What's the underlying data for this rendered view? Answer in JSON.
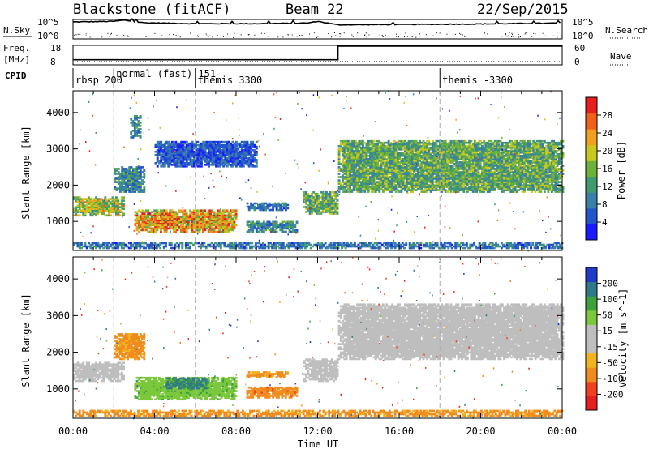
{
  "header": {
    "title": "Blackstone (fitACF)",
    "beam": "Beam 22",
    "date": "22/Sep/2015"
  },
  "noise_panel": {
    "left_label": "N.Sky",
    "right_label": "N.Search",
    "left_ticks": [
      "10^5",
      "10^0"
    ],
    "right_ticks": [
      "10^5",
      "10^0"
    ]
  },
  "freq_panel": {
    "left_label_1": "Freq.",
    "left_label_2": "[MHz]",
    "right_label": "Nave",
    "left_ticks": [
      "18",
      "8"
    ],
    "right_ticks": [
      "60",
      "0"
    ]
  },
  "cpid_panel": {
    "label": "CPID",
    "modes": [
      {
        "text": "rbsp 200",
        "hour": 0.0
      },
      {
        "text": "normal (fast) 151",
        "hour": 2.0
      },
      {
        "text": "themis 3300",
        "hour": 6.0
      },
      {
        "text": "themis -3300",
        "hour": 18.0
      }
    ]
  },
  "power_colorbar": {
    "label": "Power [dB]",
    "ticks": [
      "4",
      "8",
      "12",
      "16",
      "20",
      "24",
      "28"
    ]
  },
  "velocity_colorbar": {
    "label": "Velocity [m s^-1]",
    "ticks": [
      "-200",
      "-100",
      "-50",
      "-15",
      "15",
      "50",
      "100",
      "200"
    ]
  },
  "colors": {
    "power_scale": [
      "#1a1aff",
      "#2255cc",
      "#3a7fa8",
      "#3f9a6e",
      "#6cb13a",
      "#c8c81e",
      "#f0a020",
      "#f06018",
      "#e61e1e"
    ],
    "velocity_scale": [
      "#e61e1e",
      "#f04020",
      "#f08c1e",
      "#f0b41e",
      "#bebebe",
      "#bebebe",
      "#7cc83c",
      "#3ca03c",
      "#2f7a8a",
      "#1e3cc8"
    ],
    "ground_scatter": "#bebebe",
    "noise_line": "#000000"
  },
  "chart_data": [
    {
      "type": "line",
      "title": "Blackstone (fitACF)",
      "ylabel": "N.Sky",
      "note_series": [
        "N.Sky",
        "N.Search"
      ],
      "x": [
        "00:00",
        "02:00",
        "02:30",
        "03:30",
        "06:00",
        "09:00",
        "11:30",
        "12:00",
        "13:00",
        "16:00",
        "20:00",
        "24:00"
      ],
      "series": [
        {
          "name": "N.Sky",
          "values": [
            5.0,
            5.2,
            5.6,
            4.7,
            4.4,
            4.4,
            4.6,
            5.2,
            4.0,
            4.1,
            4.3,
            4.6
          ]
        }
      ],
      "ylim": [
        0,
        5
      ]
    },
    {
      "type": "line",
      "ylabel": "Freq. [MHz]",
      "x": [
        "00:00",
        "13:00",
        "13:00",
        "24:00"
      ],
      "series": [
        {
          "name": "Freq.",
          "values": [
            10.4,
            10.4,
            18,
            18
          ]
        }
      ],
      "ylim": [
        8,
        18
      ]
    },
    {
      "type": "heatmap",
      "xlabel": "Time UT",
      "ylabel": "Slant Range [km]",
      "colorbar": "Power [dB]",
      "x_ticks": [
        "00:00",
        "04:00",
        "08:00",
        "12:00",
        "16:00",
        "20:00",
        "00:00"
      ],
      "y_ticks": [
        1000,
        2000,
        3000,
        4000
      ],
      "xlim": [
        0,
        24
      ],
      "ylim": [
        200,
        4600
      ],
      "clim": [
        0,
        32
      ],
      "features": [
        {
          "t0": 0.0,
          "t1": 2.5,
          "r0": 1150,
          "r1": 1650,
          "value": 18
        },
        {
          "t0": 2.0,
          "t1": 3.5,
          "r0": 1800,
          "r1": 2500,
          "value": 10
        },
        {
          "t0": 2.8,
          "t1": 3.3,
          "r0": 3300,
          "r1": 3900,
          "value": 10
        },
        {
          "t0": 3.0,
          "t1": 8.0,
          "r0": 700,
          "r1": 1300,
          "value": 22
        },
        {
          "t0": 4.0,
          "t1": 9.0,
          "r0": 2500,
          "r1": 3200,
          "value": 6
        },
        {
          "t0": 8.5,
          "t1": 11.0,
          "r0": 700,
          "r1": 1000,
          "value": 10
        },
        {
          "t0": 8.5,
          "t1": 10.5,
          "r0": 1300,
          "r1": 1500,
          "value": 8
        },
        {
          "t0": 11.3,
          "t1": 13.0,
          "r0": 1200,
          "r1": 1800,
          "value": 14
        },
        {
          "t0": 13.0,
          "t1": 24.0,
          "r0": 1800,
          "r1": 3200,
          "value": 14
        },
        {
          "t0": 0.0,
          "t1": 24.0,
          "r0": 250,
          "r1": 400,
          "value": 8
        }
      ]
    },
    {
      "type": "heatmap",
      "xlabel": "Time UT",
      "ylabel": "Slant Range [km]",
      "colorbar": "Velocity [m s^-1]",
      "x_ticks": [
        "00:00",
        "04:00",
        "08:00",
        "12:00",
        "16:00",
        "20:00",
        "00:00"
      ],
      "y_ticks": [
        1000,
        2000,
        3000,
        4000
      ],
      "xlim": [
        0,
        24
      ],
      "ylim": [
        200,
        4600
      ],
      "clim": [
        -250,
        250
      ],
      "features": [
        {
          "t0": 0.0,
          "t1": 2.5,
          "r0": 1200,
          "r1": 1700,
          "value": 0
        },
        {
          "t0": 2.0,
          "t1": 3.5,
          "r0": 1800,
          "r1": 2500,
          "value": -60
        },
        {
          "t0": 3.0,
          "t1": 8.0,
          "r0": 700,
          "r1": 1300,
          "value": 40
        },
        {
          "t0": 4.5,
          "t1": 6.5,
          "r0": 1000,
          "r1": 1300,
          "value": 120
        },
        {
          "t0": 8.5,
          "t1": 11.0,
          "r0": 750,
          "r1": 1050,
          "value": -80
        },
        {
          "t0": 8.5,
          "t1": 10.5,
          "r0": 1300,
          "r1": 1450,
          "value": -60
        },
        {
          "t0": 11.3,
          "t1": 13.0,
          "r0": 1200,
          "r1": 1800,
          "value": 0
        },
        {
          "t0": 13.0,
          "t1": 24.0,
          "r0": 1800,
          "r1": 3300,
          "value": 0
        },
        {
          "t0": 0.0,
          "t1": 24.0,
          "r0": 250,
          "r1": 400,
          "value": -60
        }
      ]
    }
  ]
}
